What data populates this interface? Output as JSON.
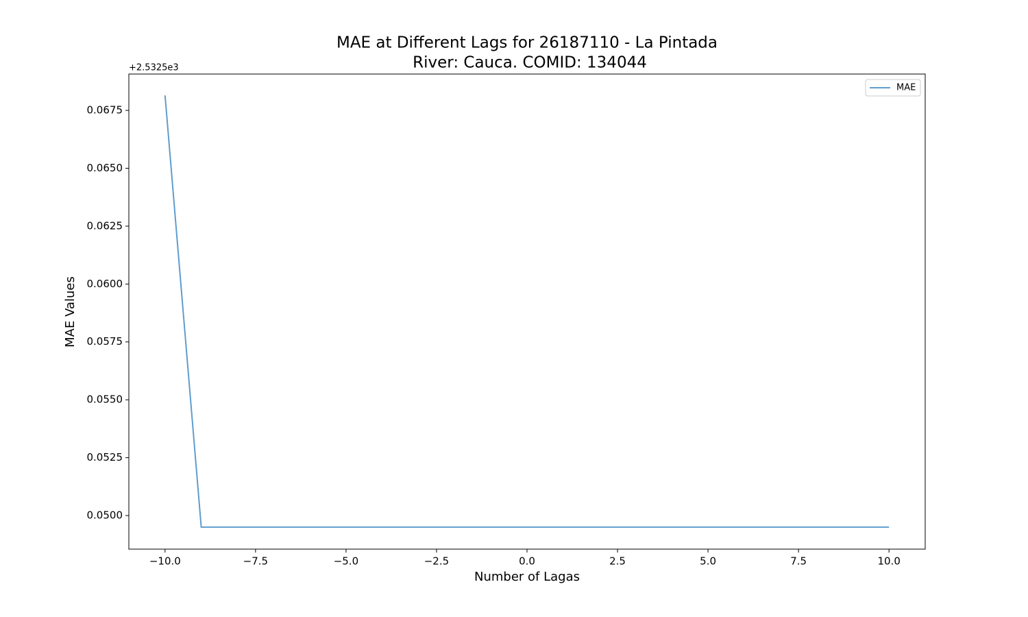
{
  "chart_data": {
    "type": "line",
    "title": "MAE at Different Lags for 26187110 - La Pintada",
    "subtitle": "River: Cauca. COMID: 134044",
    "x_label": "Number of Lagas",
    "y_label": "MAE Values",
    "y_offset_label": "+2.5325e3",
    "x": [
      -10,
      -9,
      -8,
      -7,
      -6,
      -5,
      -4,
      -3,
      -2,
      -1,
      0,
      1,
      2,
      3,
      4,
      5,
      6,
      7,
      8,
      9,
      10
    ],
    "series": [
      {
        "name": "MAE",
        "color": "#5f9ccd",
        "values": [
          0.06815,
          0.0495,
          0.0495,
          0.0495,
          0.0495,
          0.0495,
          0.0495,
          0.0495,
          0.0495,
          0.0495,
          0.0495,
          0.0495,
          0.0495,
          0.0495,
          0.0495,
          0.0495,
          0.0495,
          0.0495,
          0.0495,
          0.0495,
          0.0495
        ]
      }
    ],
    "xlim": [
      -11,
      11
    ],
    "xticks": [
      {
        "value": -10,
        "label": "−10.0"
      },
      {
        "value": -7.5,
        "label": "−7.5"
      },
      {
        "value": -5,
        "label": "−5.0"
      },
      {
        "value": -2.5,
        "label": "−2.5"
      },
      {
        "value": 0,
        "label": "0.0"
      },
      {
        "value": 2.5,
        "label": "2.5"
      },
      {
        "value": 5,
        "label": "5.0"
      },
      {
        "value": 7.5,
        "label": "7.5"
      },
      {
        "value": 10,
        "label": "10.0"
      }
    ],
    "ylim": [
      0.04855,
      0.06907
    ],
    "yticks": [
      {
        "value": 0.05,
        "label": "0.0500"
      },
      {
        "value": 0.0525,
        "label": "0.0525"
      },
      {
        "value": 0.055,
        "label": "0.0550"
      },
      {
        "value": 0.0575,
        "label": "0.0575"
      },
      {
        "value": 0.06,
        "label": "0.0600"
      },
      {
        "value": 0.0625,
        "label": "0.0625"
      },
      {
        "value": 0.065,
        "label": "0.0650"
      },
      {
        "value": 0.0675,
        "label": "0.0675"
      }
    ],
    "grid": false,
    "legend": "upper-right"
  }
}
